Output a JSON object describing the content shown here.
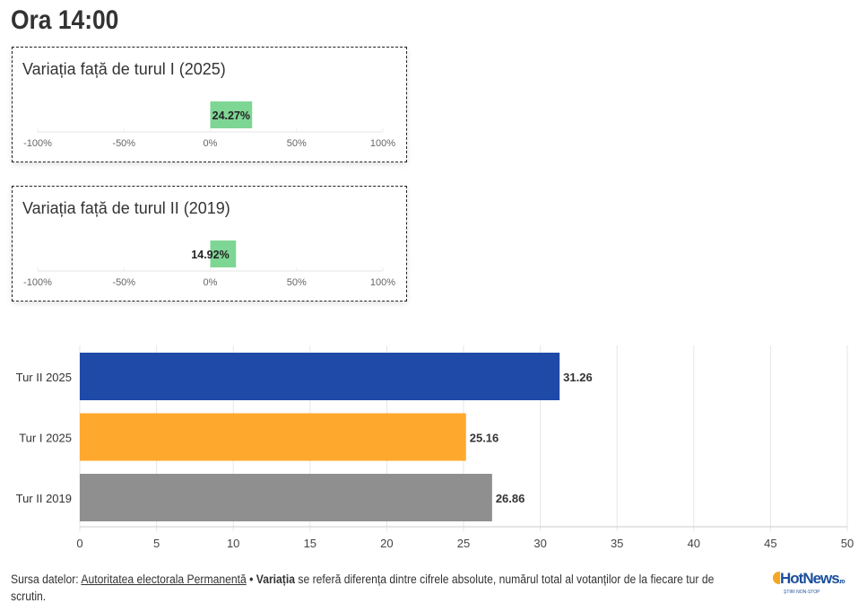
{
  "title": "Ora 14:00",
  "colors": {
    "variation": "#7ed694",
    "tur2_2025": "#1f4aa8",
    "tur1_2025": "#ffa82e",
    "tur2_2019": "#8f8f8f"
  },
  "chart_data": [
    {
      "type": "bar",
      "title": "Variația față de turul I (2025)",
      "values": [
        24.27
      ],
      "value_labels": [
        "24.27%"
      ],
      "xlim": [
        -100,
        100
      ],
      "ticks": [
        "-100%",
        "-50%",
        "0%",
        "50%",
        "100%"
      ],
      "tick_values": [
        -100,
        -50,
        0,
        50,
        100
      ]
    },
    {
      "type": "bar",
      "title": "Variația față de turul II (2019)",
      "values": [
        14.92
      ],
      "value_labels": [
        "14.92%"
      ],
      "xlim": [
        -100,
        100
      ],
      "ticks": [
        "-100%",
        "-50%",
        "0%",
        "50%",
        "100%"
      ],
      "tick_values": [
        -100,
        -50,
        0,
        50,
        100
      ]
    },
    {
      "type": "bar",
      "orientation": "horizontal",
      "categories": [
        "Tur II 2025",
        "Tur I 2025",
        "Tur II 2019"
      ],
      "values": [
        31.26,
        25.16,
        26.86
      ],
      "value_labels": [
        "31.26",
        "25.16",
        "26.86"
      ],
      "xlim": [
        0,
        50
      ],
      "ticks": [
        "0",
        "5",
        "10",
        "15",
        "20",
        "25",
        "30",
        "35",
        "40",
        "45",
        "50"
      ],
      "tick_values": [
        0,
        5,
        10,
        15,
        20,
        25,
        30,
        35,
        40,
        45,
        50
      ],
      "grid": true
    }
  ],
  "footer": {
    "source_label": "Sursa datelor:",
    "source_link": "Autoritatea electorala Permanentă",
    "sep": " • ",
    "bold": "Variația",
    "text": " se referă diferența dintre cifrele absolute, numărul total al votanților de la fiecare tur de scrutin."
  },
  "logo": {
    "text": "HotNews",
    "suffix": ".ro",
    "tagline": "ȘTIRI NON-STOP"
  }
}
